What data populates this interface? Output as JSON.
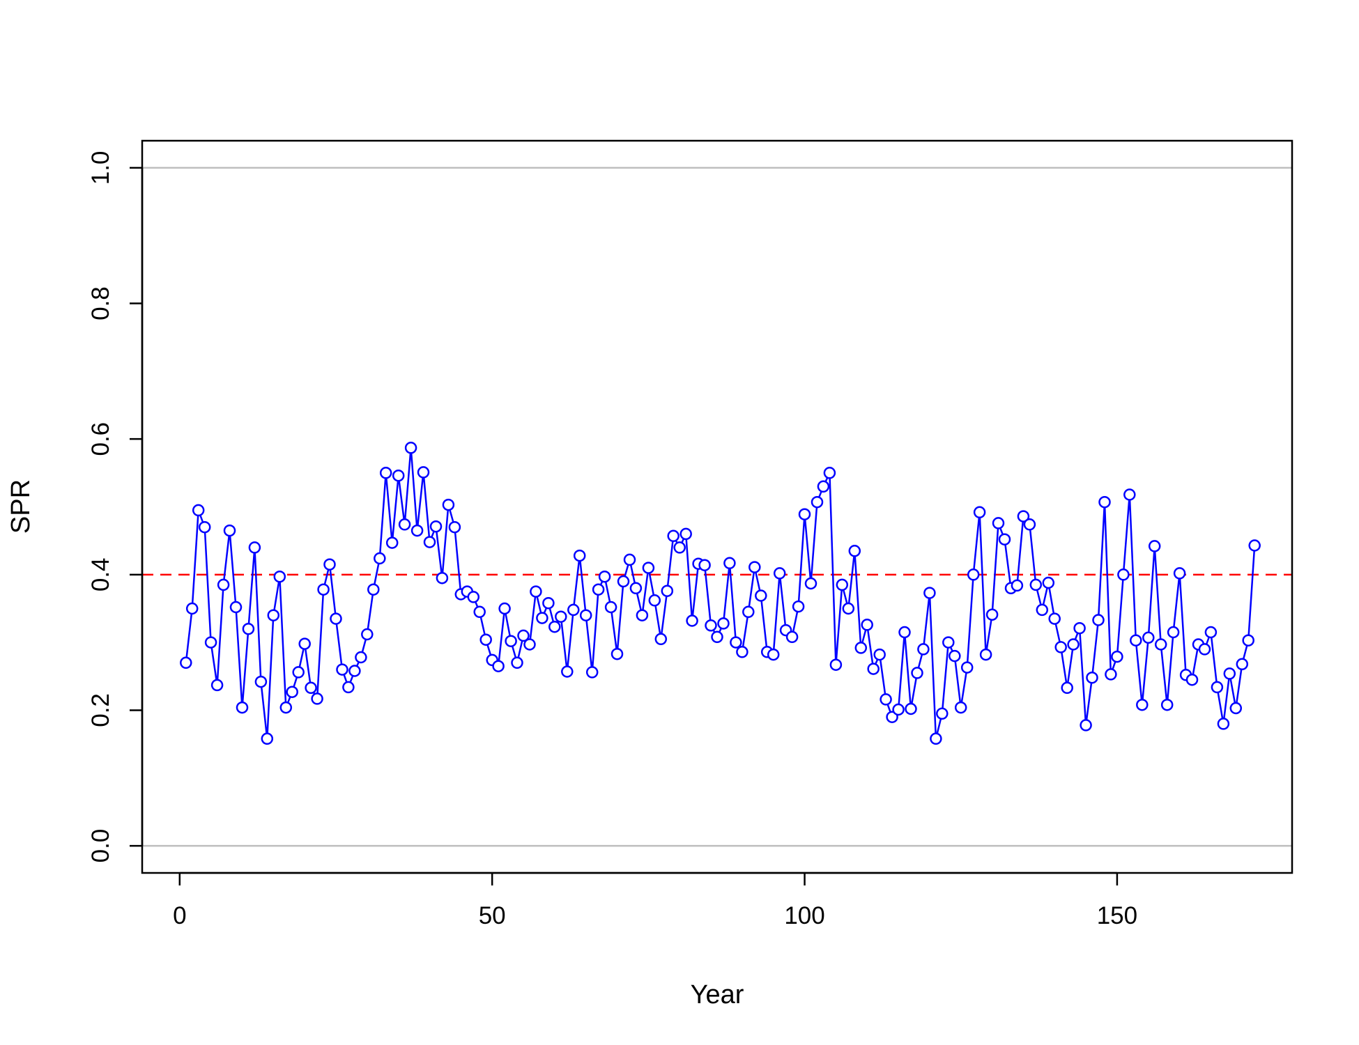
{
  "chart_data": {
    "type": "line",
    "title": "",
    "xlabel": "Year",
    "ylabel": "SPR",
    "xlim": [
      -6,
      178
    ],
    "ylim": [
      -0.04,
      1.04
    ],
    "x_ticks": [
      "0",
      "50",
      "100",
      "150"
    ],
    "y_ticks": [
      "0.0",
      "0.2",
      "0.4",
      "0.6",
      "0.8",
      "1.0"
    ],
    "grid": false,
    "reference_lines": [
      {
        "y": 0.0,
        "color": "#bebebe",
        "style": "solid"
      },
      {
        "y": 1.0,
        "color": "#bebebe",
        "style": "solid"
      },
      {
        "y": 0.4,
        "color": "#ff0000",
        "style": "dashed"
      }
    ],
    "series": [
      {
        "color": "#0000ff",
        "marker": "open-circle",
        "x_start": 1,
        "values": [
          0.27,
          0.35,
          0.495,
          0.47,
          0.3,
          0.237,
          0.385,
          0.465,
          0.352,
          0.204,
          0.32,
          0.44,
          0.242,
          0.158,
          0.34,
          0.397,
          0.204,
          0.227,
          0.256,
          0.298,
          0.233,
          0.217,
          0.378,
          0.415,
          0.335,
          0.26,
          0.234,
          0.258,
          0.278,
          0.312,
          0.378,
          0.424,
          0.55,
          0.447,
          0.546,
          0.474,
          0.587,
          0.465,
          0.551,
          0.448,
          0.471,
          0.395,
          0.503,
          0.47,
          0.371,
          0.375,
          0.367,
          0.345,
          0.304,
          0.274,
          0.265,
          0.35,
          0.302,
          0.27,
          0.31,
          0.297,
          0.375,
          0.336,
          0.358,
          0.323,
          0.338,
          0.257,
          0.348,
          0.428,
          0.34,
          0.256,
          0.378,
          0.397,
          0.352,
          0.283,
          0.39,
          0.422,
          0.38,
          0.34,
          0.41,
          0.362,
          0.305,
          0.376,
          0.457,
          0.44,
          0.46,
          0.332,
          0.416,
          0.414,
          0.325,
          0.308,
          0.328,
          0.417,
          0.3,
          0.286,
          0.345,
          0.411,
          0.369,
          0.286,
          0.282,
          0.402,
          0.318,
          0.308,
          0.353,
          0.489,
          0.387,
          0.507,
          0.53,
          0.55,
          0.267,
          0.385,
          0.35,
          0.435,
          0.292,
          0.326,
          0.261,
          0.282,
          0.216,
          0.19,
          0.201,
          0.315,
          0.202,
          0.255,
          0.29,
          0.373,
          0.158,
          0.195,
          0.3,
          0.28,
          0.204,
          0.263,
          0.4,
          0.492,
          0.282,
          0.341,
          0.476,
          0.452,
          0.38,
          0.384,
          0.486,
          0.474,
          0.385,
          0.348,
          0.388,
          0.335,
          0.293,
          0.233,
          0.297,
          0.321,
          0.178,
          0.248,
          0.333,
          0.507,
          0.253,
          0.279,
          0.4,
          0.518,
          0.303,
          0.208,
          0.307,
          0.442,
          0.297,
          0.208,
          0.315,
          0.402,
          0.252,
          0.245,
          0.297,
          0.29,
          0.315,
          0.234,
          0.18,
          0.254,
          0.203,
          0.268,
          0.303,
          0.443
        ]
      }
    ]
  }
}
